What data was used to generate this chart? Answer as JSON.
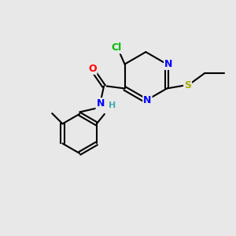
{
  "background_color": "#e8e8e8",
  "bond_color": "#000000",
  "atom_colors": {
    "Cl": "#00bb00",
    "N": "#0000ff",
    "O": "#ff0000",
    "S": "#aaaa00",
    "C": "#000000",
    "H": "#44aaaa"
  },
  "figsize": [
    3.0,
    3.0
  ],
  "dpi": 100,
  "xlim": [
    0,
    10
  ],
  "ylim": [
    0,
    10
  ]
}
